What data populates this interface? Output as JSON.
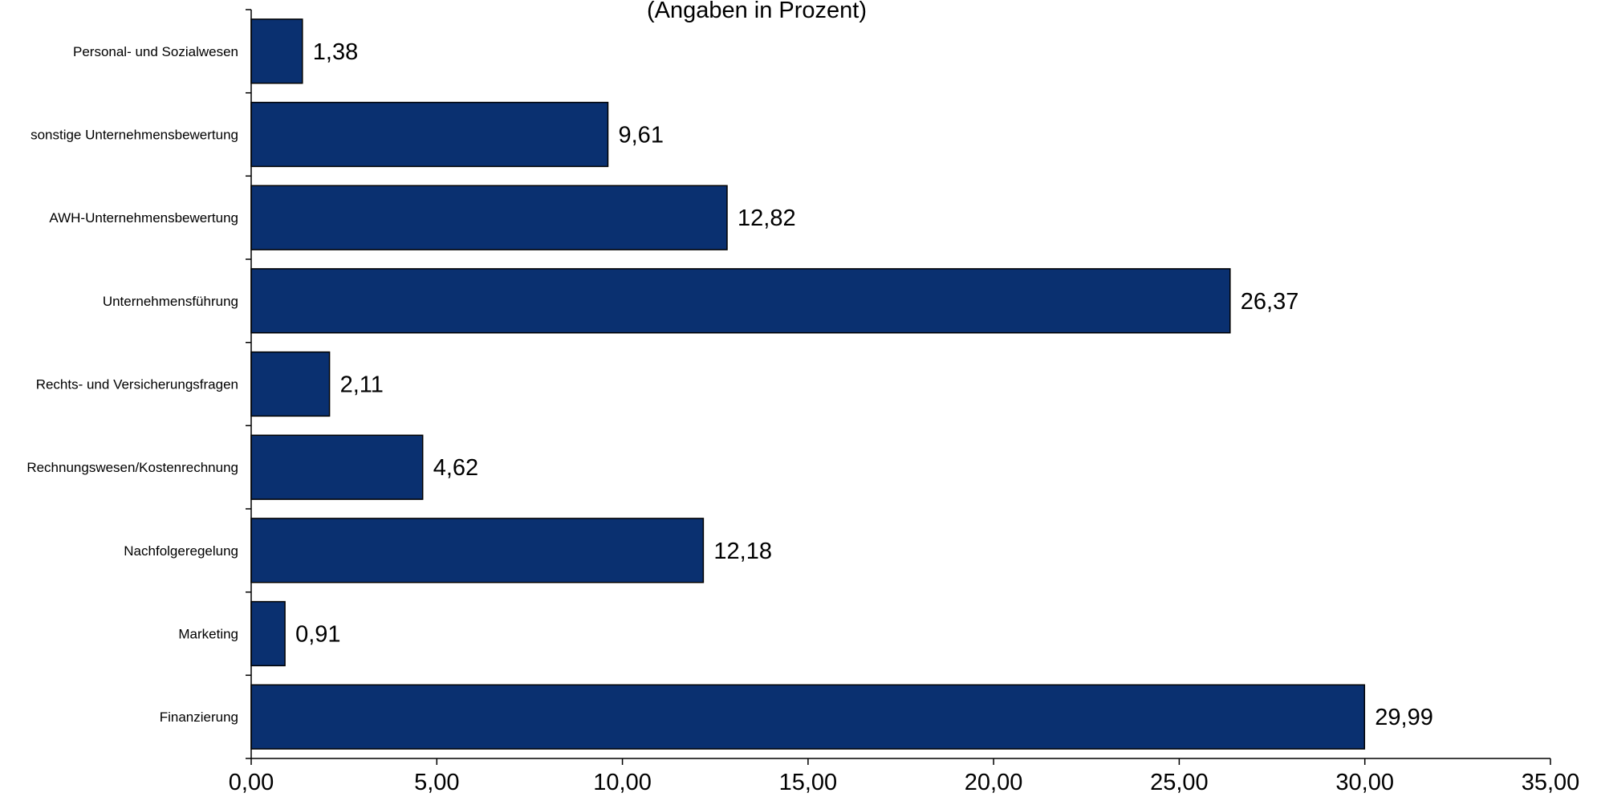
{
  "chart_data": {
    "type": "bar",
    "orientation": "horizontal",
    "subtitle": "(Angaben in Prozent)",
    "categories": [
      "Personal- und Sozialwesen",
      "sonstige Unternehmensbewertung",
      "AWH-Unternehmensbewertung",
      "Unternehmensführung",
      "Rechts- und Versicherungsfragen",
      "Rechnungswesen/Kostenrechnung",
      "Nachfolgeregelung",
      "Marketing",
      "Finanzierung"
    ],
    "values": [
      1.38,
      9.61,
      12.82,
      26.37,
      2.11,
      4.62,
      12.18,
      0.91,
      29.99
    ],
    "value_labels": [
      "1,38",
      "9,61",
      "12,82",
      "26,37",
      "2,11",
      "4,62",
      "12,18",
      "0,91",
      "29,99"
    ],
    "xlim": [
      0,
      35
    ],
    "x_ticks": [
      0,
      5,
      10,
      15,
      20,
      25,
      30,
      35
    ],
    "x_tick_labels": [
      "0,00",
      "5,00",
      "10,00",
      "15,00",
      "20,00",
      "25,00",
      "30,00",
      "35,00"
    ],
    "grid": false,
    "bar_color": "#0A3070",
    "bar_outline": "#000000"
  }
}
